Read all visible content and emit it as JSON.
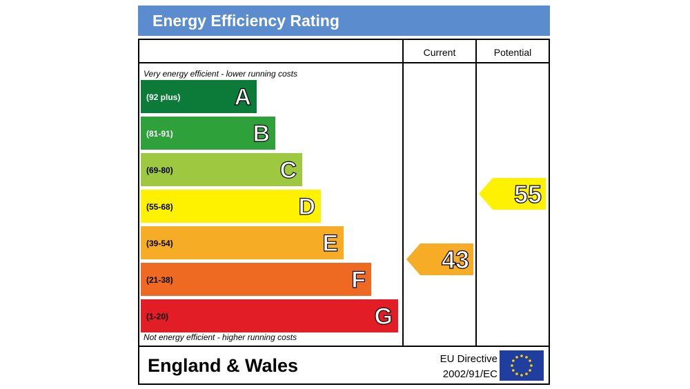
{
  "title": "Energy Efficiency Rating",
  "columns": {
    "current": "Current",
    "potential": "Potential"
  },
  "notes": {
    "top": "Very energy efficient - lower running costs",
    "bottom": "Not energy efficient - higher running costs"
  },
  "footer": {
    "country": "England & Wales",
    "directive_line1": "EU Directive",
    "directive_line2": "2002/91/EC",
    "flag_icon": "eu-flag-icon"
  },
  "chart_data": {
    "type": "bar",
    "bands": [
      {
        "letter": "A",
        "range": "(92 plus)",
        "color": "#0c7b3a",
        "text_color": "#ffffff"
      },
      {
        "letter": "B",
        "range": "(81-91)",
        "color": "#2ea13a",
        "text_color": "#ffffff"
      },
      {
        "letter": "C",
        "range": "(69-80)",
        "color": "#9dc83f",
        "text_color": "#000000"
      },
      {
        "letter": "D",
        "range": "(55-68)",
        "color": "#fff200",
        "text_color": "#000000"
      },
      {
        "letter": "E",
        "range": "(39-54)",
        "color": "#f6ac25",
        "text_color": "#000000"
      },
      {
        "letter": "F",
        "range": "(21-38)",
        "color": "#ee6a23",
        "text_color": "#000000"
      },
      {
        "letter": "G",
        "range": "(1-20)",
        "color": "#e31d25",
        "text_color": "#000000"
      }
    ],
    "current": {
      "value": 43,
      "band": "E",
      "color": "#f6ac25"
    },
    "potential": {
      "value": 55,
      "band": "D",
      "color": "#fff200"
    }
  }
}
